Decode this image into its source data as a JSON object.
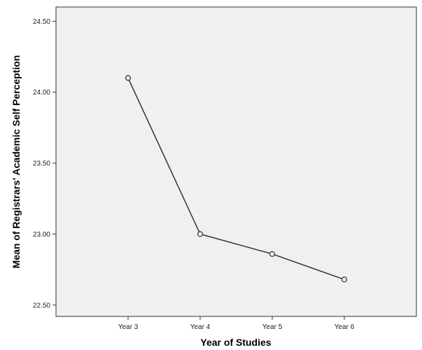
{
  "chart_data": {
    "type": "line",
    "categories": [
      "Year 3",
      "Year 4",
      "Year 5",
      "Year 6"
    ],
    "series": [
      {
        "values": [
          24.1,
          23.0,
          22.86,
          22.68
        ]
      }
    ],
    "title": "",
    "xlabel": "Year of Studies",
    "ylabel": "Mean of Registrars' Academic Self Perception",
    "ylim": [
      22.42,
      24.6
    ],
    "yticks": [
      22.5,
      23.0,
      23.5,
      24.0,
      24.5
    ],
    "ytick_labels": [
      "22.50",
      "23.00",
      "23.50",
      "24.00",
      "24.50"
    ],
    "grid": false,
    "legend": "none",
    "colors": {
      "plot_background": "#f0f0f0",
      "line": "#333333",
      "marker_edge": "#333333",
      "frame": "#333333"
    }
  }
}
